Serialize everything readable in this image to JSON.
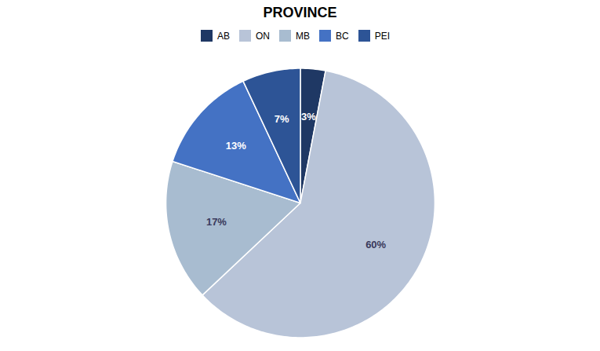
{
  "chart_data": {
    "type": "pie",
    "title": "PROVINCE",
    "categories": [
      "AB",
      "ON",
      "MB",
      "BC",
      "PEI"
    ],
    "values": [
      3,
      60,
      17,
      13,
      7
    ],
    "value_labels": [
      "3%",
      "60%",
      "17%",
      "13%",
      "7%"
    ],
    "colors": [
      "#1f3864",
      "#b8c4d8",
      "#a8bcd0",
      "#4472c4",
      "#2d5496"
    ],
    "data_labels": true,
    "legend": "top"
  }
}
